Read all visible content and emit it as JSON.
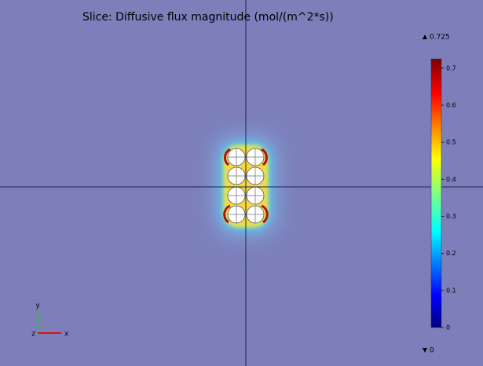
{
  "title": "Slice: Diffusive flux magnitude (mol/(m^2*s))",
  "colorbar": {
    "max": 0.725,
    "min": 0,
    "ticks": [
      0,
      0.1,
      0.2,
      0.3,
      0.4,
      0.5,
      0.6,
      0.7
    ]
  },
  "triad": {
    "x": "x",
    "y": "y",
    "z": "z"
  }
}
